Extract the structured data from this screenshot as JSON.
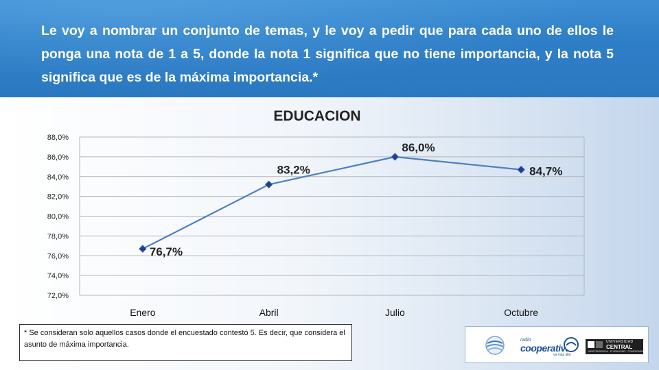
{
  "header": {
    "question": "Le voy a nombrar un conjunto de temas, y le voy a pedir que para cada uno de ellos le ponga una nota de 1 a 5, donde la nota 1 significa que no tiene importancia, y la nota 5 significa que es de la máxima importancia.*"
  },
  "chart_data": {
    "type": "line",
    "title": "EDUCACION",
    "categories": [
      "Enero",
      "Abril",
      "Julio",
      "Octubre"
    ],
    "series": [
      {
        "values": [
          76.7,
          83.2,
          86.0,
          84.7
        ]
      }
    ],
    "data_labels": [
      "76,7%",
      "83,2%",
      "86,0%",
      "84,7%"
    ],
    "ylim": [
      72,
      88
    ],
    "ytick_values": [
      72,
      74,
      76,
      78,
      80,
      82,
      84,
      86,
      88
    ],
    "ytick_labels": [
      "72,0%",
      "74,0%",
      "76,0%",
      "78,0%",
      "80,0%",
      "82,0%",
      "84,0%",
      "86,0%",
      "88,0%"
    ],
    "grid": true,
    "legend": "none",
    "colors": {
      "line": "#4f81bd",
      "marker": "#1f3f8f",
      "grid": "#b5b5b5"
    }
  },
  "footnote": {
    "text": "* Se consideran solo aquellos casos donde el encuestado contestó 5. Es decir, que considera el asunto de máxima importancia."
  },
  "logos": {
    "coop_small": "radio",
    "coop_name": "cooperativa",
    "coop_tagline": "va más allá",
    "central_top": "UNIVERSIDAD",
    "central_name": "CENTRAL",
    "central_tagline": "INDEPENDENCIA · PLURALISMO · COMPROMISO"
  }
}
